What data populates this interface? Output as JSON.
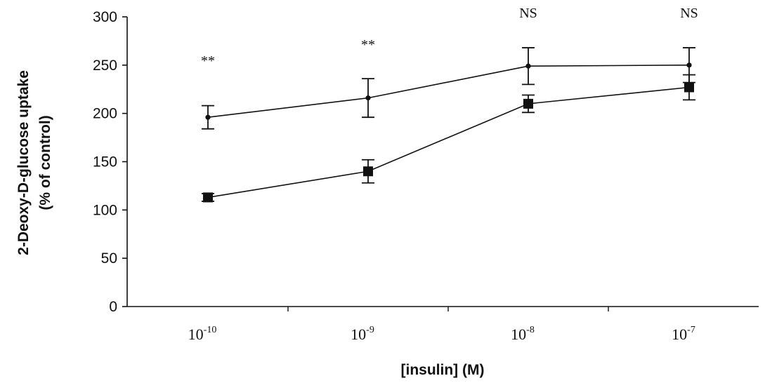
{
  "chart_data": {
    "type": "line",
    "xlabel": "[insulin] (M)",
    "ylabel": [
      "2-Deoxy-D-glucose uptake",
      "(% of control)"
    ],
    "ylim": [
      0,
      300
    ],
    "yticks": [
      "0",
      "50",
      "100",
      "150",
      "200",
      "250",
      "300"
    ],
    "x_scale": "log",
    "categories": [
      {
        "base": "10",
        "exp": "-10"
      },
      {
        "base": "10",
        "exp": "-9"
      },
      {
        "base": "10",
        "exp": "-8"
      },
      {
        "base": "10",
        "exp": "-7"
      }
    ],
    "series": [
      {
        "marker": "circle",
        "values": [
          196,
          216,
          249,
          250
        ],
        "errors": [
          12,
          20,
          19,
          18
        ]
      },
      {
        "marker": "square",
        "values": [
          113,
          140,
          210,
          227
        ],
        "errors": [
          4,
          12,
          9,
          13
        ]
      }
    ],
    "annotations": [
      "**",
      "**",
      "NS",
      "NS"
    ]
  }
}
